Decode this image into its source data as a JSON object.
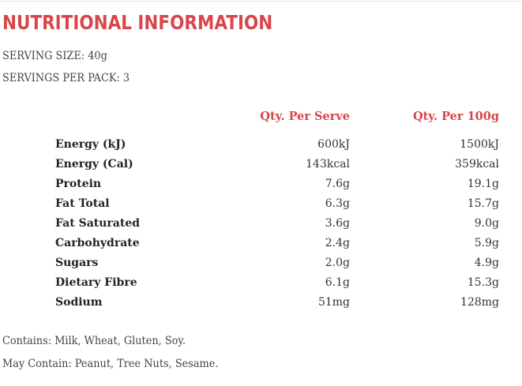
{
  "title": "NUTRITIONAL INFORMATION",
  "serving_size": "SERVING SIZE: 40g",
  "servings_per_pack": "SERVINGS PER PACK: 3",
  "table": {
    "headers": [
      "Qty. Per Serve",
      "Qty. Per 100g"
    ],
    "rows": [
      {
        "label": "Energy (kJ)",
        "per_serve": "600kJ",
        "per_100g": "1500kJ"
      },
      {
        "label": "Energy (Cal)",
        "per_serve": "143kcal",
        "per_100g": "359kcal"
      },
      {
        "label": "Protein",
        "per_serve": "7.6g",
        "per_100g": "19.1g"
      },
      {
        "label": "Fat Total",
        "per_serve": "6.3g",
        "per_100g": "15.7g"
      },
      {
        "label": "Fat Saturated",
        "per_serve": "3.6g",
        "per_100g": "9.0g"
      },
      {
        "label": "Carbohydrate",
        "per_serve": "2.4g",
        "per_100g": "5.9g"
      },
      {
        "label": "Sugars",
        "per_serve": "2.0g",
        "per_100g": "4.9g"
      },
      {
        "label": "Dietary Fibre",
        "per_serve": "6.1g",
        "per_100g": "15.3g"
      },
      {
        "label": "Sodium",
        "per_serve": "51mg",
        "per_100g": "128mg"
      }
    ]
  },
  "contains": "Contains: Milk, Wheat, Gluten, Soy.",
  "may_contain": "May Contain: Peanut, Tree Nuts, Sesame.",
  "colors": {
    "accent": "#d9454a"
  }
}
